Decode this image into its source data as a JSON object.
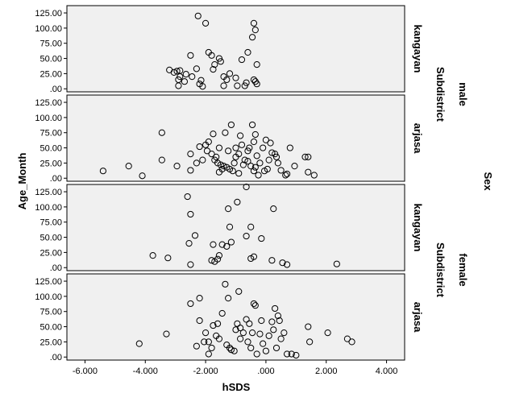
{
  "chart_data": {
    "type": "scatter",
    "xlabel": "hSDS",
    "ylabel": "Age_Month",
    "outer_row_label": "Sex",
    "inner_row_label": "Subdistrict",
    "xlim": [
      -6.6,
      4.6
    ],
    "ylim": [
      -5,
      137
    ],
    "x_ticks": [
      -6,
      -4,
      -2,
      0,
      2,
      4
    ],
    "x_tick_labels": [
      "-6.000",
      "-4.000",
      "-2.000",
      ".000",
      "2.000",
      "4.000"
    ],
    "y_ticks": [
      0,
      25,
      50,
      75,
      100,
      125
    ],
    "y_tick_labels": [
      ".00",
      "25.00",
      "50.00",
      "75.00",
      "100.00",
      "125.00"
    ],
    "panels": [
      {
        "sex": "male",
        "subdistrict": "kangayan",
        "points": [
          [
            -2.25,
            120
          ],
          [
            -2.0,
            108
          ],
          [
            -0.4,
            108
          ],
          [
            -0.35,
            97
          ],
          [
            -0.45,
            85
          ],
          [
            -1.9,
            60
          ],
          [
            -1.8,
            55
          ],
          [
            -1.55,
            50
          ],
          [
            -1.5,
            45
          ],
          [
            -1.7,
            40
          ],
          [
            -1.75,
            32
          ],
          [
            -0.6,
            60
          ],
          [
            -0.8,
            48
          ],
          [
            -0.3,
            40
          ],
          [
            -2.5,
            55
          ],
          [
            -2.65,
            24
          ],
          [
            -2.3,
            33
          ],
          [
            -2.45,
            20
          ],
          [
            -3.2,
            31
          ],
          [
            -3.05,
            27
          ],
          [
            -2.95,
            29
          ],
          [
            -2.85,
            30
          ],
          [
            -2.85,
            20
          ],
          [
            -2.9,
            15
          ],
          [
            -2.7,
            12
          ],
          [
            -2.9,
            5
          ],
          [
            -2.2,
            8
          ],
          [
            -2.1,
            4
          ],
          [
            -1.2,
            25
          ],
          [
            -1.4,
            20
          ],
          [
            -1.3,
            15
          ],
          [
            -1.0,
            18
          ],
          [
            -0.65,
            10
          ],
          [
            -0.4,
            15
          ],
          [
            -0.35,
            12
          ],
          [
            -0.3,
            8
          ],
          [
            -0.7,
            5
          ],
          [
            -0.95,
            5
          ],
          [
            -1.4,
            5
          ],
          [
            -2.15,
            14
          ]
        ]
      },
      {
        "sex": "male",
        "subdistrict": "arjasa",
        "points": [
          [
            -5.4,
            12
          ],
          [
            -4.55,
            20
          ],
          [
            -4.1,
            4
          ],
          [
            -3.45,
            75
          ],
          [
            -3.45,
            30
          ],
          [
            -2.95,
            20
          ],
          [
            -2.5,
            13
          ],
          [
            -2.5,
            40
          ],
          [
            -2.2,
            52
          ],
          [
            -2.0,
            55
          ],
          [
            -1.9,
            60
          ],
          [
            -1.75,
            73
          ],
          [
            -1.55,
            50
          ],
          [
            -1.35,
            75
          ],
          [
            -1.15,
            88
          ],
          [
            -1.0,
            50
          ],
          [
            -0.85,
            70
          ],
          [
            -0.8,
            55
          ],
          [
            -0.6,
            45
          ],
          [
            -0.45,
            88
          ],
          [
            -0.4,
            60
          ],
          [
            -0.35,
            72
          ],
          [
            -0.3,
            37
          ],
          [
            -0.1,
            50
          ],
          [
            0.0,
            63
          ],
          [
            0.15,
            58
          ],
          [
            0.2,
            42
          ],
          [
            0.3,
            40
          ],
          [
            0.4,
            25
          ],
          [
            0.5,
            13
          ],
          [
            0.65,
            5
          ],
          [
            0.8,
            50
          ],
          [
            0.95,
            20
          ],
          [
            1.3,
            35
          ],
          [
            1.4,
            35
          ],
          [
            1.6,
            5
          ],
          [
            1.4,
            10
          ],
          [
            -1.8,
            40
          ],
          [
            -1.7,
            30
          ],
          [
            -1.6,
            25
          ],
          [
            -1.5,
            22
          ],
          [
            -1.4,
            20
          ],
          [
            -1.3,
            18
          ],
          [
            -1.2,
            15
          ],
          [
            -1.1,
            12
          ],
          [
            -1.0,
            35
          ],
          [
            -0.9,
            40
          ],
          [
            -0.7,
            30
          ],
          [
            -0.6,
            28
          ],
          [
            -0.5,
            20
          ],
          [
            -0.4,
            12
          ],
          [
            -0.25,
            5
          ],
          [
            -0.2,
            25
          ],
          [
            0.05,
            15
          ],
          [
            0.1,
            30
          ],
          [
            0.35,
            35
          ],
          [
            -2.1,
            30
          ],
          [
            -2.3,
            25
          ],
          [
            -1.95,
            45
          ],
          [
            -1.65,
            35
          ],
          [
            -1.25,
            45
          ],
          [
            -1.05,
            25
          ],
          [
            -0.75,
            22
          ],
          [
            -0.55,
            50
          ],
          [
            -0.35,
            18
          ],
          [
            -1.45,
            15
          ],
          [
            -1.55,
            10
          ],
          [
            -0.05,
            12
          ],
          [
            0.7,
            7
          ],
          [
            -0.9,
            8
          ]
        ]
      },
      {
        "sex": "female",
        "subdistrict": "kangayan",
        "points": [
          [
            -0.65,
            133
          ],
          [
            -2.6,
            117
          ],
          [
            -0.95,
            108
          ],
          [
            -1.25,
            97
          ],
          [
            0.25,
            97
          ],
          [
            -2.5,
            88
          ],
          [
            -2.35,
            53
          ],
          [
            -1.75,
            38
          ],
          [
            -1.45,
            38
          ],
          [
            -1.3,
            35
          ],
          [
            -1.15,
            42
          ],
          [
            -1.2,
            67
          ],
          [
            -0.5,
            67
          ],
          [
            -0.65,
            52
          ],
          [
            -0.15,
            48
          ],
          [
            -3.75,
            20
          ],
          [
            -3.25,
            16
          ],
          [
            -2.55,
            40
          ],
          [
            -2.5,
            5
          ],
          [
            -1.8,
            12
          ],
          [
            -1.6,
            14
          ],
          [
            -1.55,
            20
          ],
          [
            -0.5,
            15
          ],
          [
            -0.4,
            18
          ],
          [
            0.2,
            12
          ],
          [
            0.55,
            8
          ],
          [
            0.7,
            5
          ],
          [
            2.35,
            6
          ],
          [
            -1.7,
            10
          ]
        ]
      },
      {
        "sex": "female",
        "subdistrict": "arjasa",
        "points": [
          [
            -4.2,
            22
          ],
          [
            -3.3,
            38
          ],
          [
            -2.5,
            88
          ],
          [
            -2.2,
            97
          ],
          [
            -2.3,
            18
          ],
          [
            -2.2,
            60
          ],
          [
            -2.05,
            25
          ],
          [
            -1.9,
            25
          ],
          [
            -1.75,
            52
          ],
          [
            -1.6,
            55
          ],
          [
            -1.45,
            72
          ],
          [
            -1.35,
            120
          ],
          [
            -1.25,
            97
          ],
          [
            -1.15,
            12
          ],
          [
            -1.05,
            10
          ],
          [
            -0.95,
            55
          ],
          [
            -0.9,
            108
          ],
          [
            -0.85,
            48
          ],
          [
            -0.75,
            40
          ],
          [
            -0.65,
            62
          ],
          [
            -0.55,
            55
          ],
          [
            -0.45,
            40
          ],
          [
            -0.4,
            88
          ],
          [
            -0.35,
            85
          ],
          [
            -0.3,
            5
          ],
          [
            -0.2,
            38
          ],
          [
            -0.1,
            22
          ],
          [
            0.0,
            10
          ],
          [
            0.1,
            35
          ],
          [
            0.2,
            58
          ],
          [
            0.25,
            45
          ],
          [
            0.3,
            80
          ],
          [
            0.4,
            68
          ],
          [
            0.45,
            60
          ],
          [
            0.6,
            40
          ],
          [
            0.7,
            5
          ],
          [
            0.85,
            5
          ],
          [
            1.0,
            3
          ],
          [
            1.4,
            50
          ],
          [
            1.45,
            25
          ],
          [
            2.05,
            40
          ],
          [
            2.7,
            30
          ],
          [
            2.85,
            25
          ],
          [
            -1.65,
            35
          ],
          [
            -1.55,
            30
          ],
          [
            -1.3,
            20
          ],
          [
            -1.2,
            15
          ],
          [
            -1.0,
            45
          ],
          [
            -0.85,
            30
          ],
          [
            -0.6,
            25
          ],
          [
            -0.5,
            15
          ],
          [
            -0.15,
            60
          ],
          [
            0.35,
            15
          ],
          [
            0.5,
            30
          ],
          [
            -1.8,
            15
          ],
          [
            -2.0,
            40
          ],
          [
            -1.9,
            5
          ]
        ]
      }
    ],
    "colors": {
      "panel_fill": "#f0f0f0",
      "marker_stroke": "#000000"
    }
  }
}
